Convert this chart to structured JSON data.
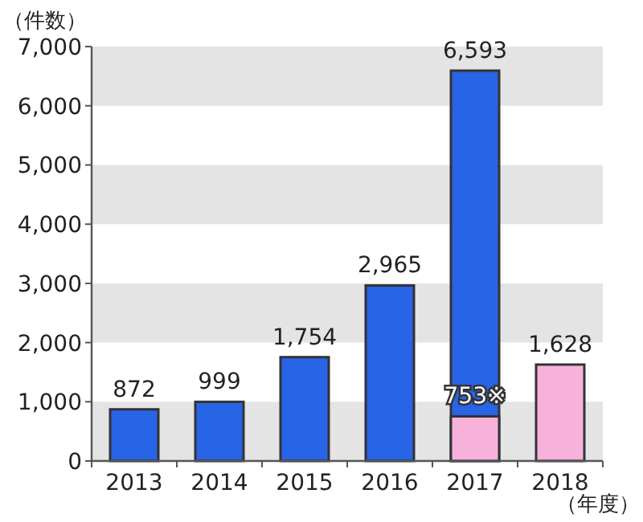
{
  "chart_data": {
    "type": "bar",
    "ylabel": "（件数）",
    "xlabel": "（年度）",
    "categories": [
      "2013",
      "2014",
      "2015",
      "2016",
      "2017",
      "2018"
    ],
    "series": [
      {
        "color": "#2864e6",
        "values": [
          872,
          999,
          1754,
          2965,
          6593,
          null
        ],
        "value_labels": [
          "872",
          "999",
          "1,754",
          "2,965",
          "6,593",
          null
        ]
      },
      {
        "color": "#f7b2dc",
        "values": [
          null,
          null,
          null,
          null,
          753,
          1628
        ],
        "value_labels": [
          null,
          null,
          null,
          null,
          "753※",
          "1,628"
        ]
      }
    ],
    "ylim": [
      0,
      7000
    ],
    "yticks": [
      {
        "value": 0,
        "label": "0"
      },
      {
        "value": 1000,
        "label": "1,000"
      },
      {
        "value": 2000,
        "label": "2,000"
      },
      {
        "value": 3000,
        "label": "3,000"
      },
      {
        "value": 4000,
        "label": "4,000"
      },
      {
        "value": 5000,
        "label": "5,000"
      },
      {
        "value": 6000,
        "label": "6,000"
      },
      {
        "value": 7000,
        "label": "7,000"
      }
    ],
    "bands": [
      {
        "axis": "y",
        "from": 0,
        "to": 1000,
        "color": "#e4e4e4"
      },
      {
        "axis": "y",
        "from": 2000,
        "to": 3000,
        "color": "#e4e4e4"
      },
      {
        "axis": "y",
        "from": 4000,
        "to": 5000,
        "color": "#e4e4e4"
      },
      {
        "axis": "y",
        "from": 6000,
        "to": 7000,
        "color": "#e4e4e4"
      }
    ]
  }
}
